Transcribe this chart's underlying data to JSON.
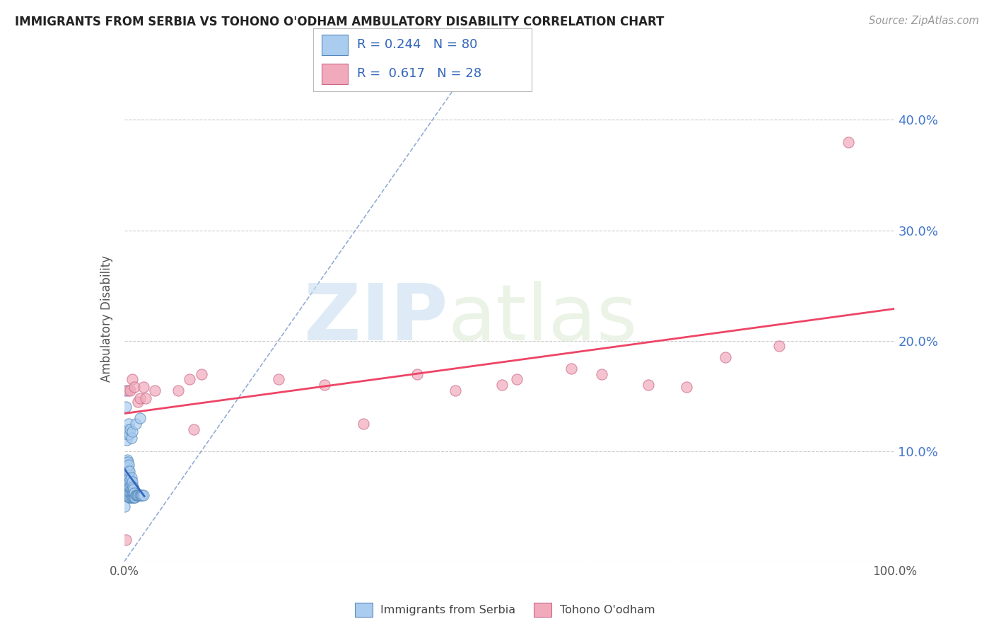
{
  "title": "IMMIGRANTS FROM SERBIA VS TOHONO O'ODHAM AMBULATORY DISABILITY CORRELATION CHART",
  "source": "Source: ZipAtlas.com",
  "ylabel": "Ambulatory Disability",
  "xlim": [
    0,
    1.0
  ],
  "ylim": [
    0,
    0.44
  ],
  "x_ticks": [
    0.0,
    0.2,
    0.4,
    0.6,
    0.8,
    1.0
  ],
  "x_tick_labels": [
    "0.0%",
    "",
    "",
    "",
    "",
    "100.0%"
  ],
  "y_ticks": [
    0.0,
    0.1,
    0.2,
    0.3,
    0.4
  ],
  "y_tick_labels": [
    "",
    "10.0%",
    "20.0%",
    "30.0%",
    "40.0%"
  ],
  "legend_labels": [
    "Immigrants from Serbia",
    "Tohono O'odham"
  ],
  "series1_color": "#aaccee",
  "series2_color": "#f0aabb",
  "series1_edge": "#5588bb",
  "series2_edge": "#cc6688",
  "line1_color": "#3366bb",
  "line2_color": "#ee4466",
  "dashed_line_color": "#7799cc",
  "R1": 0.244,
  "N1": 80,
  "R2": 0.617,
  "N2": 28,
  "watermark_zip": "ZIP",
  "watermark_atlas": "atlas",
  "series1_x": [
    0.0005,
    0.001,
    0.001,
    0.0015,
    0.002,
    0.002,
    0.002,
    0.0025,
    0.003,
    0.003,
    0.003,
    0.003,
    0.003,
    0.004,
    0.004,
    0.004,
    0.004,
    0.004,
    0.005,
    0.005,
    0.005,
    0.005,
    0.005,
    0.005,
    0.005,
    0.006,
    0.006,
    0.006,
    0.006,
    0.006,
    0.006,
    0.006,
    0.007,
    0.007,
    0.007,
    0.007,
    0.007,
    0.007,
    0.008,
    0.008,
    0.008,
    0.008,
    0.009,
    0.009,
    0.009,
    0.009,
    0.009,
    0.01,
    0.01,
    0.01,
    0.01,
    0.011,
    0.011,
    0.011,
    0.012,
    0.012,
    0.012,
    0.013,
    0.013,
    0.014,
    0.015,
    0.016,
    0.017,
    0.018,
    0.019,
    0.02,
    0.021,
    0.022,
    0.023,
    0.025,
    0.003,
    0.004,
    0.005,
    0.006,
    0.007,
    0.008,
    0.009,
    0.01,
    0.015,
    0.02
  ],
  "series1_y": [
    0.05,
    0.06,
    0.155,
    0.08,
    0.06,
    0.075,
    0.14,
    0.065,
    0.072,
    0.08,
    0.09,
    0.06,
    0.075,
    0.062,
    0.068,
    0.08,
    0.092,
    0.075,
    0.06,
    0.065,
    0.07,
    0.08,
    0.085,
    0.09,
    0.07,
    0.058,
    0.062,
    0.068,
    0.072,
    0.078,
    0.082,
    0.088,
    0.058,
    0.062,
    0.068,
    0.072,
    0.076,
    0.082,
    0.058,
    0.062,
    0.068,
    0.074,
    0.058,
    0.062,
    0.066,
    0.07,
    0.076,
    0.058,
    0.062,
    0.066,
    0.072,
    0.058,
    0.062,
    0.068,
    0.058,
    0.062,
    0.066,
    0.058,
    0.062,
    0.058,
    0.06,
    0.06,
    0.06,
    0.06,
    0.06,
    0.06,
    0.06,
    0.06,
    0.06,
    0.06,
    0.11,
    0.115,
    0.12,
    0.125,
    0.115,
    0.12,
    0.112,
    0.118,
    0.125,
    0.13
  ],
  "series2_x": [
    0.002,
    0.005,
    0.008,
    0.01,
    0.013,
    0.018,
    0.02,
    0.025,
    0.028,
    0.04,
    0.07,
    0.085,
    0.09,
    0.1,
    0.2,
    0.26,
    0.31,
    0.38,
    0.43,
    0.49,
    0.51,
    0.58,
    0.62,
    0.68,
    0.73,
    0.78,
    0.85,
    0.94
  ],
  "series2_y": [
    0.02,
    0.155,
    0.155,
    0.165,
    0.158,
    0.145,
    0.148,
    0.158,
    0.148,
    0.155,
    0.155,
    0.165,
    0.12,
    0.17,
    0.165,
    0.16,
    0.125,
    0.17,
    0.155,
    0.16,
    0.165,
    0.175,
    0.17,
    0.16,
    0.158,
    0.185,
    0.195,
    0.38
  ],
  "line1_x_start": 0.0,
  "line1_x_end": 0.025,
  "line2_x_start": 0.0,
  "line2_x_end": 1.0,
  "line2_y_start": 0.125,
  "line2_y_end": 0.225
}
